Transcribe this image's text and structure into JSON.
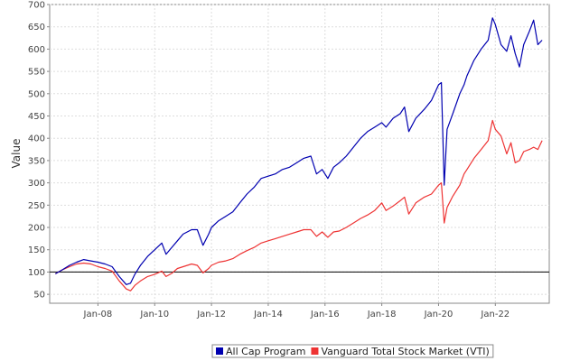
{
  "chart_data": {
    "type": "line",
    "title": "",
    "xlabel": "",
    "ylabel": "Value",
    "xlim": [
      2006.3,
      2023.9
    ],
    "ylim": [
      30,
      700
    ],
    "x_ticks": [
      {
        "label": "Jan-08",
        "x": 2008.0
      },
      {
        "label": "Jan-10",
        "x": 2010.0
      },
      {
        "label": "Jan-12",
        "x": 2012.0
      },
      {
        "label": "Jan-14",
        "x": 2014.0
      },
      {
        "label": "Jan-16",
        "x": 2016.0
      },
      {
        "label": "Jan-18",
        "x": 2018.0
      },
      {
        "label": "Jan-20",
        "x": 2020.0
      },
      {
        "label": "Jan-22",
        "x": 2022.0
      }
    ],
    "y_ticks": [
      50,
      100,
      150,
      200,
      250,
      300,
      350,
      400,
      450,
      500,
      550,
      600,
      650,
      700
    ],
    "grid": true,
    "reference_line": {
      "y": 100,
      "color": "#000000"
    },
    "legend_position": "bottom-center",
    "series": [
      {
        "name": "All Cap Program",
        "color": "#0000b0",
        "points": [
          [
            2006.5,
            96
          ],
          [
            2006.75,
            105
          ],
          [
            2007.0,
            115
          ],
          [
            2007.25,
            122
          ],
          [
            2007.5,
            128
          ],
          [
            2007.75,
            125
          ],
          [
            2008.0,
            122
          ],
          [
            2008.25,
            118
          ],
          [
            2008.5,
            112
          ],
          [
            2008.75,
            90
          ],
          [
            2009.0,
            72
          ],
          [
            2009.15,
            75
          ],
          [
            2009.3,
            95
          ],
          [
            2009.5,
            115
          ],
          [
            2009.75,
            135
          ],
          [
            2010.0,
            150
          ],
          [
            2010.25,
            165
          ],
          [
            2010.4,
            140
          ],
          [
            2010.6,
            155
          ],
          [
            2010.8,
            170
          ],
          [
            2011.0,
            185
          ],
          [
            2011.3,
            195
          ],
          [
            2011.5,
            195
          ],
          [
            2011.7,
            160
          ],
          [
            2011.9,
            185
          ],
          [
            2012.0,
            200
          ],
          [
            2012.25,
            215
          ],
          [
            2012.5,
            225
          ],
          [
            2012.75,
            235
          ],
          [
            2013.0,
            255
          ],
          [
            2013.25,
            275
          ],
          [
            2013.5,
            290
          ],
          [
            2013.75,
            310
          ],
          [
            2014.0,
            315
          ],
          [
            2014.25,
            320
          ],
          [
            2014.5,
            330
          ],
          [
            2014.75,
            335
          ],
          [
            2015.0,
            345
          ],
          [
            2015.25,
            355
          ],
          [
            2015.5,
            360
          ],
          [
            2015.7,
            320
          ],
          [
            2015.9,
            330
          ],
          [
            2016.1,
            310
          ],
          [
            2016.3,
            335
          ],
          [
            2016.5,
            345
          ],
          [
            2016.75,
            360
          ],
          [
            2017.0,
            380
          ],
          [
            2017.25,
            400
          ],
          [
            2017.5,
            415
          ],
          [
            2017.75,
            425
          ],
          [
            2018.0,
            435
          ],
          [
            2018.15,
            425
          ],
          [
            2018.4,
            445
          ],
          [
            2018.65,
            455
          ],
          [
            2018.8,
            470
          ],
          [
            2018.95,
            415
          ],
          [
            2019.2,
            445
          ],
          [
            2019.5,
            465
          ],
          [
            2019.75,
            485
          ],
          [
            2020.0,
            520
          ],
          [
            2020.1,
            525
          ],
          [
            2020.2,
            295
          ],
          [
            2020.3,
            420
          ],
          [
            2020.5,
            455
          ],
          [
            2020.75,
            500
          ],
          [
            2020.9,
            520
          ],
          [
            2021.0,
            540
          ],
          [
            2021.25,
            575
          ],
          [
            2021.5,
            600
          ],
          [
            2021.75,
            620
          ],
          [
            2021.9,
            670
          ],
          [
            2022.0,
            655
          ],
          [
            2022.2,
            610
          ],
          [
            2022.4,
            595
          ],
          [
            2022.55,
            630
          ],
          [
            2022.7,
            590
          ],
          [
            2022.85,
            560
          ],
          [
            2023.0,
            610
          ],
          [
            2023.2,
            640
          ],
          [
            2023.35,
            665
          ],
          [
            2023.5,
            610
          ],
          [
            2023.65,
            620
          ]
        ]
      },
      {
        "name": "Vanguard Total Stock Market (VTI)",
        "color": "#ee3333",
        "points": [
          [
            2006.5,
            96
          ],
          [
            2006.75,
            105
          ],
          [
            2007.0,
            112
          ],
          [
            2007.25,
            118
          ],
          [
            2007.5,
            120
          ],
          [
            2007.75,
            118
          ],
          [
            2008.0,
            112
          ],
          [
            2008.25,
            108
          ],
          [
            2008.5,
            102
          ],
          [
            2008.75,
            80
          ],
          [
            2009.0,
            62
          ],
          [
            2009.15,
            58
          ],
          [
            2009.3,
            70
          ],
          [
            2009.5,
            80
          ],
          [
            2009.75,
            90
          ],
          [
            2010.0,
            95
          ],
          [
            2010.25,
            102
          ],
          [
            2010.4,
            90
          ],
          [
            2010.6,
            97
          ],
          [
            2010.8,
            108
          ],
          [
            2011.0,
            112
          ],
          [
            2011.3,
            118
          ],
          [
            2011.5,
            115
          ],
          [
            2011.7,
            98
          ],
          [
            2011.9,
            108
          ],
          [
            2012.0,
            115
          ],
          [
            2012.25,
            122
          ],
          [
            2012.5,
            125
          ],
          [
            2012.75,
            130
          ],
          [
            2013.0,
            140
          ],
          [
            2013.25,
            148
          ],
          [
            2013.5,
            155
          ],
          [
            2013.75,
            165
          ],
          [
            2014.0,
            170
          ],
          [
            2014.25,
            175
          ],
          [
            2014.5,
            180
          ],
          [
            2014.75,
            185
          ],
          [
            2015.0,
            190
          ],
          [
            2015.25,
            195
          ],
          [
            2015.5,
            195
          ],
          [
            2015.7,
            180
          ],
          [
            2015.9,
            190
          ],
          [
            2016.1,
            178
          ],
          [
            2016.3,
            190
          ],
          [
            2016.5,
            192
          ],
          [
            2016.75,
            200
          ],
          [
            2017.0,
            210
          ],
          [
            2017.25,
            220
          ],
          [
            2017.5,
            228
          ],
          [
            2017.75,
            238
          ],
          [
            2018.0,
            255
          ],
          [
            2018.15,
            238
          ],
          [
            2018.4,
            248
          ],
          [
            2018.65,
            260
          ],
          [
            2018.8,
            268
          ],
          [
            2018.95,
            230
          ],
          [
            2019.2,
            255
          ],
          [
            2019.5,
            268
          ],
          [
            2019.75,
            275
          ],
          [
            2020.0,
            295
          ],
          [
            2020.1,
            300
          ],
          [
            2020.2,
            210
          ],
          [
            2020.3,
            245
          ],
          [
            2020.5,
            270
          ],
          [
            2020.75,
            295
          ],
          [
            2020.9,
            320
          ],
          [
            2021.0,
            330
          ],
          [
            2021.25,
            355
          ],
          [
            2021.5,
            375
          ],
          [
            2021.75,
            395
          ],
          [
            2021.9,
            440
          ],
          [
            2022.0,
            420
          ],
          [
            2022.2,
            405
          ],
          [
            2022.4,
            365
          ],
          [
            2022.55,
            390
          ],
          [
            2022.7,
            345
          ],
          [
            2022.85,
            350
          ],
          [
            2023.0,
            370
          ],
          [
            2023.2,
            375
          ],
          [
            2023.35,
            380
          ],
          [
            2023.5,
            375
          ],
          [
            2023.65,
            395
          ]
        ]
      }
    ]
  }
}
